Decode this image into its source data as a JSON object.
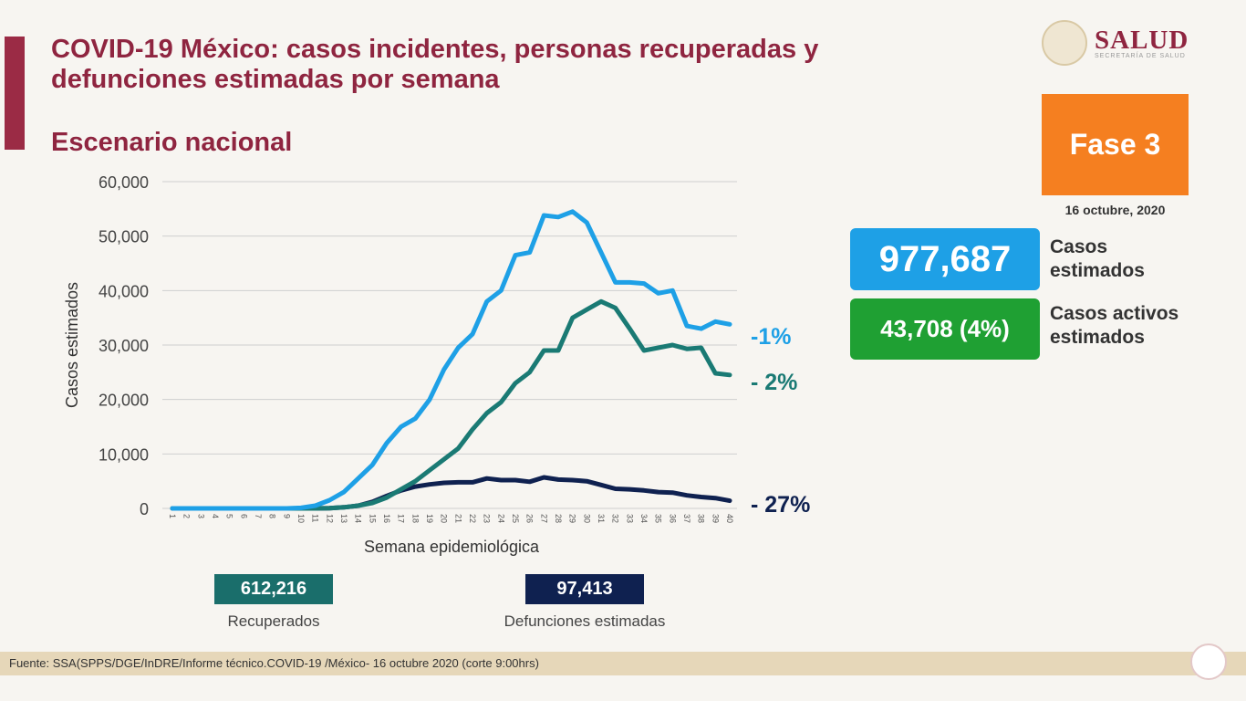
{
  "header": {
    "title": "COVID-19 México: casos incidentes, personas recuperadas y defunciones estimadas por semana",
    "subtitle": "Escenario nacional"
  },
  "logo": {
    "word": "SALUD",
    "sub": "SECRETARÍA DE SALUD"
  },
  "phase": {
    "label": "Fase 3",
    "date": "16 octubre, 2020",
    "color": "#f57f20"
  },
  "kpis": [
    {
      "value": "977,687",
      "label_1": "Casos",
      "label_2": "estimados",
      "color": "#1ea0e6"
    },
    {
      "value": "43,708 (4%)",
      "label_1": "Casos activos",
      "label_2": "estimados",
      "color": "#1fa033"
    }
  ],
  "summary": [
    {
      "value": "612,216",
      "label": "Recuperados",
      "color": "#1a6e6b"
    },
    {
      "value": "97,413",
      "label": "Defunciones estimadas",
      "color": "#0f2150"
    }
  ],
  "footer": {
    "source": "Fuente: SSA(SPPS/DGE/InDRE/Informe técnico.COVID-19 /México- 16 octubre 2020 (corte 9:00hrs)"
  },
  "chart_data": {
    "type": "line",
    "xlabel": "Semana epidemiológica",
    "ylabel": "Casos estimados",
    "ylim": [
      0,
      60000
    ],
    "yticks": [
      "0",
      "10,000",
      "20,000",
      "30,000",
      "40,000",
      "50,000",
      "60,000"
    ],
    "grid": true,
    "x": [
      1,
      2,
      3,
      4,
      5,
      6,
      7,
      8,
      9,
      10,
      11,
      12,
      13,
      14,
      15,
      16,
      17,
      18,
      19,
      20,
      21,
      22,
      23,
      24,
      25,
      26,
      27,
      28,
      29,
      30,
      31,
      32,
      33,
      34,
      35,
      36,
      37,
      38,
      39,
      40
    ],
    "series": [
      {
        "key": "casos",
        "color": "#1ea0e6",
        "end_label": "-1%",
        "values": [
          0,
          0,
          0,
          0,
          0,
          0,
          0,
          0,
          0,
          100,
          500,
          1500,
          3000,
          5500,
          8000,
          12000,
          15000,
          16500,
          20000,
          25500,
          29500,
          32000,
          38000,
          40000,
          46500,
          47000,
          53800,
          53500,
          54500,
          52500,
          47000,
          41500,
          41500,
          41300,
          39500,
          40000,
          33500,
          33000,
          34300,
          33800
        ]
      },
      {
        "key": "recuperados",
        "color": "#1a7a74",
        "end_label": "- 2%",
        "values": [
          0,
          0,
          0,
          0,
          0,
          0,
          0,
          0,
          0,
          0,
          0,
          50,
          200,
          500,
          1000,
          2000,
          3500,
          5000,
          7000,
          9000,
          11000,
          14500,
          17500,
          19500,
          23000,
          25000,
          29000,
          29000,
          35000,
          36500,
          38000,
          36800,
          33000,
          29000,
          29500,
          30000,
          29300,
          29500,
          24800,
          24500
        ]
      },
      {
        "key": "defunciones",
        "color": "#0f2150",
        "end_label": "- 27%",
        "values": [
          0,
          0,
          0,
          0,
          0,
          0,
          0,
          0,
          0,
          0,
          0,
          50,
          200,
          500,
          1200,
          2300,
          3300,
          4000,
          4400,
          4700,
          4800,
          4800,
          5500,
          5200,
          5200,
          4900,
          5700,
          5300,
          5200,
          5000,
          4300,
          3600,
          3500,
          3300,
          3000,
          2900,
          2400,
          2100,
          1900,
          1400
        ]
      }
    ]
  }
}
